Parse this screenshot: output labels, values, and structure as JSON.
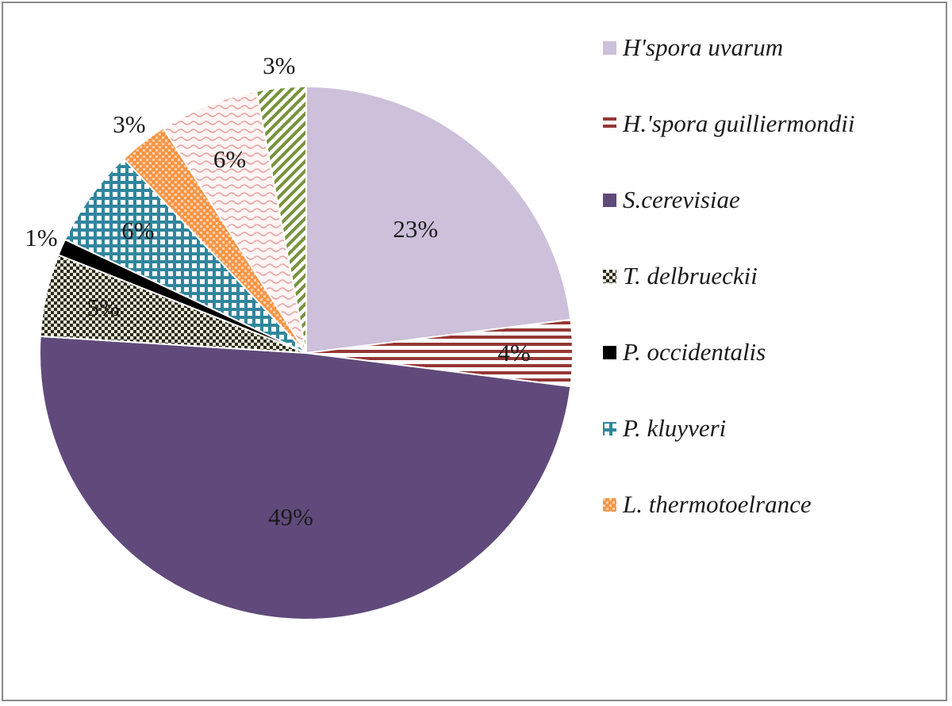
{
  "chart_data": {
    "type": "pie",
    "title": "",
    "slices": [
      {
        "name": "H'spora uvarum",
        "label": "23%",
        "value": 23,
        "color": "#ccc0da",
        "pattern": "solid",
        "in_legend": true
      },
      {
        "name": "H.'spora guilliermondii",
        "label": "4%",
        "value": 4,
        "color": "#953735",
        "pattern": "hstripes",
        "in_legend": true
      },
      {
        "name": "S.cerevisiae",
        "label": "49%",
        "value": 49,
        "color": "#604a7b",
        "pattern": "solid",
        "in_legend": true
      },
      {
        "name": "T.  delbrueckii",
        "label": "5%",
        "value": 5,
        "color": "#2b2b1d",
        "pattern": "checker",
        "in_legend": true
      },
      {
        "name": "P. occidentalis",
        "label": "1%",
        "value": 1,
        "color": "#000000",
        "pattern": "solid",
        "in_legend": true
      },
      {
        "name": "P. kluyveri",
        "label": "6%",
        "value": 6,
        "color": "#31859c",
        "pattern": "grid",
        "in_legend": true
      },
      {
        "name": "L. thermotoelrance",
        "label": "3%",
        "value": 3,
        "color": "#f79646",
        "pattern": "dots",
        "in_legend": true
      },
      {
        "name": "",
        "label": "6%",
        "value": 6,
        "color": "#e6a7a7",
        "pattern": "wave",
        "in_legend": false
      },
      {
        "name": "",
        "label": "3%",
        "value": 3,
        "color": "#77933c",
        "pattern": "diag",
        "in_legend": false
      }
    ],
    "legend_position": "right"
  }
}
